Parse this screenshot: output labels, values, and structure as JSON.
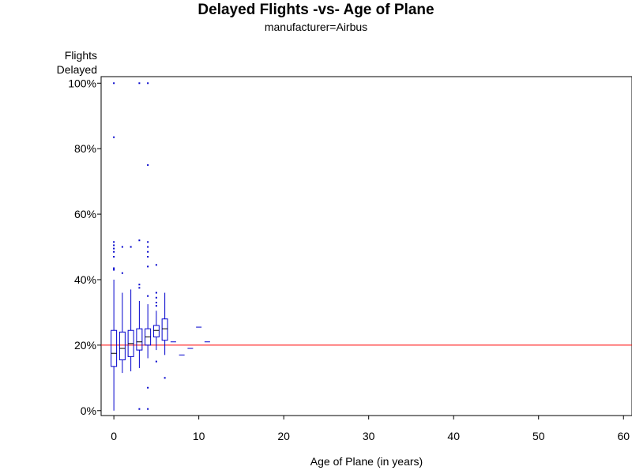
{
  "chart_data": {
    "type": "box",
    "title": "Delayed Flights -vs- Age of Plane",
    "subtitle": "manufacturer=Airbus",
    "ylabel_line1": "Flights",
    "ylabel_line2": "Delayed",
    "xlabel": "Age of Plane (in years)",
    "xlim": [
      -1.5,
      61
    ],
    "ylim": [
      -1.5,
      102
    ],
    "x_ticks": [
      0,
      10,
      20,
      30,
      40,
      50,
      60
    ],
    "x_tick_labels": [
      "0",
      "10",
      "20",
      "30",
      "40",
      "50",
      "60"
    ],
    "y_ticks": [
      0,
      20,
      40,
      60,
      80,
      100
    ],
    "y_tick_labels": [
      "0%",
      "20%",
      "40%",
      "60%",
      "80%",
      "100%"
    ],
    "reference_line": {
      "y": 20,
      "color": "#ff0000"
    },
    "box_color": "#0000cc",
    "median_color": "#000000",
    "boxes": [
      {
        "x": 0,
        "q1": 13.5,
        "median": 17.5,
        "q3": 24.5,
        "whisker_low": 0,
        "whisker_high": 40,
        "outliers": [
          43,
          43.5,
          47,
          48.5,
          49.5,
          50.5,
          51.5,
          83.5,
          100
        ]
      },
      {
        "x": 1,
        "q1": 15.5,
        "median": 19,
        "q3": 24,
        "whisker_low": 11.5,
        "whisker_high": 36,
        "outliers": [
          42,
          50
        ]
      },
      {
        "x": 2,
        "q1": 16.5,
        "median": 20.5,
        "q3": 24.5,
        "whisker_low": 12,
        "whisker_high": 37,
        "outliers": [
          50
        ]
      },
      {
        "x": 3,
        "q1": 18.5,
        "median": 21,
        "q3": 25,
        "whisker_low": 13,
        "whisker_high": 33.5,
        "outliers": [
          0.5,
          37.5,
          38.5,
          52,
          100
        ]
      },
      {
        "x": 4,
        "q1": 20,
        "median": 22.5,
        "q3": 25,
        "whisker_low": 16,
        "whisker_high": 32.5,
        "outliers": [
          0.5,
          7,
          35,
          44,
          47,
          48.5,
          50,
          51.5,
          75,
          100
        ]
      },
      {
        "x": 5,
        "q1": 22.5,
        "median": 24.5,
        "q3": 26,
        "whisker_low": 18.5,
        "whisker_high": 30.5,
        "outliers": [
          15,
          32,
          33,
          34.5,
          36,
          44.5
        ]
      },
      {
        "x": 6,
        "q1": 21.5,
        "median": 25,
        "q3": 28,
        "whisker_low": 17,
        "whisker_high": 36,
        "outliers": [
          10
        ]
      },
      {
        "x": 7,
        "median": 21
      },
      {
        "x": 8,
        "median": 17
      },
      {
        "x": 9,
        "median": 19
      },
      {
        "x": 10,
        "median": 25.5
      },
      {
        "x": 11,
        "median": 21
      }
    ]
  }
}
